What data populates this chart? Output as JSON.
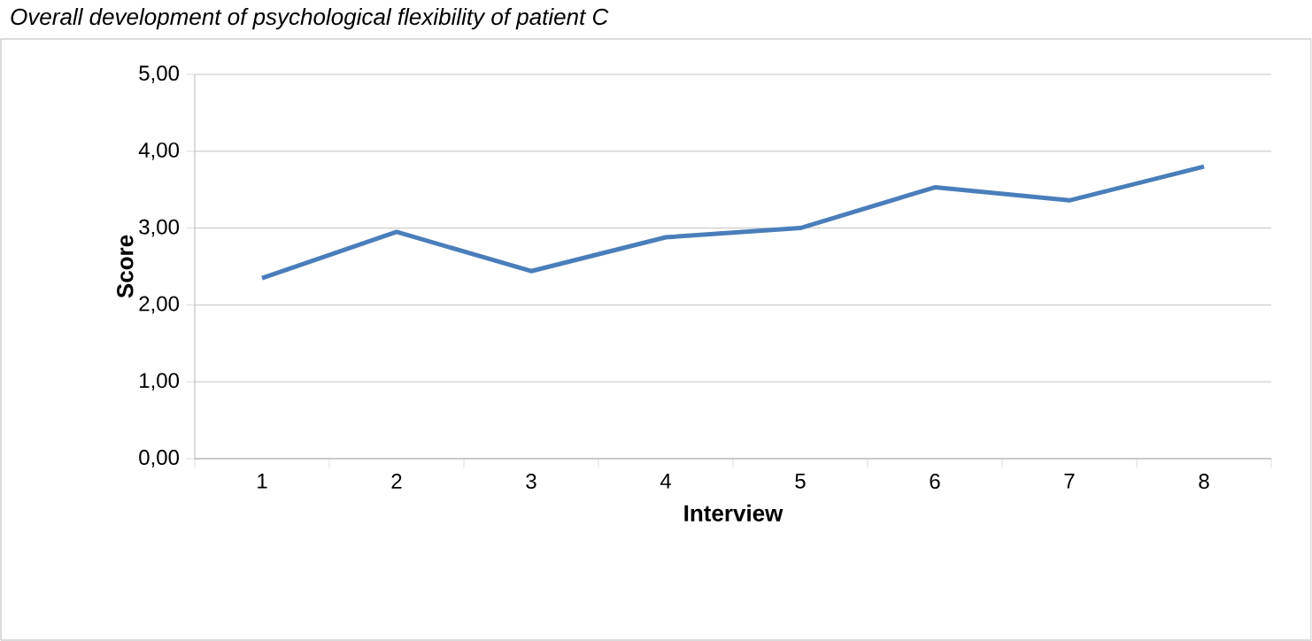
{
  "chart_data": {
    "type": "line",
    "title": "Overall development of psychological flexibility of patient C",
    "xlabel": "Interview",
    "ylabel": "Score",
    "categories": [
      "1",
      "2",
      "3",
      "4",
      "5",
      "6",
      "7",
      "8"
    ],
    "series": [
      {
        "color": "#4a7ebb",
        "values": [
          2.35,
          2.95,
          2.44,
          2.88,
          3.0,
          3.53,
          3.36,
          3.8
        ]
      }
    ],
    "ylim": [
      0,
      5
    ],
    "yticks": [
      {
        "value": 0,
        "label": "0,00"
      },
      {
        "value": 1,
        "label": "1,00"
      },
      {
        "value": 2,
        "label": "2,00"
      },
      {
        "value": 3,
        "label": "3,00"
      },
      {
        "value": 4,
        "label": "4,00"
      },
      {
        "value": 5,
        "label": "5,00"
      }
    ],
    "grid": "y"
  }
}
